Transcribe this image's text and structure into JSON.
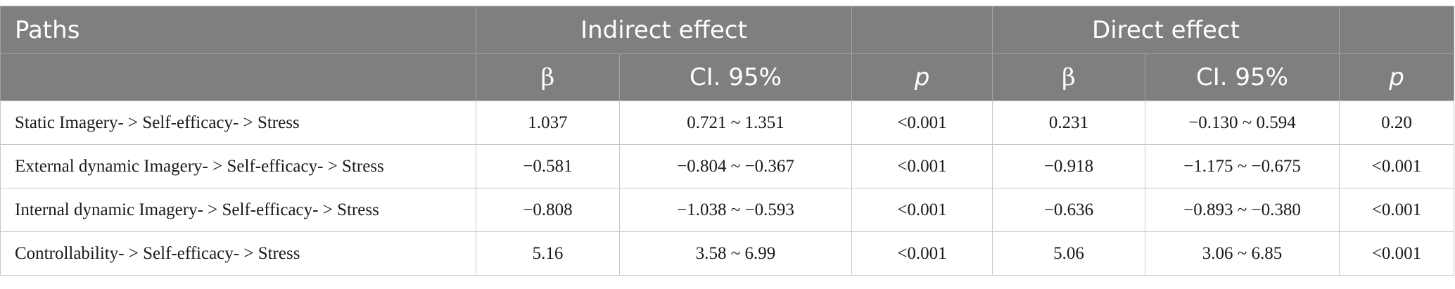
{
  "header": {
    "paths": "Paths",
    "indirect_effect": "Indirect effect",
    "direct_effect": "Direct effect",
    "beta": "β",
    "ci": "CI. 95%",
    "p": "p"
  },
  "rows": [
    {
      "path": "Static Imagery- > Self-efficacy- > Stress",
      "ind_beta": "1.037",
      "ind_ci": "0.721 ~ 1.351",
      "ind_p": "<0.001",
      "dir_beta": "0.231",
      "dir_ci": "−0.130 ~ 0.594",
      "dir_p": "0.20"
    },
    {
      "path": "External dynamic Imagery- > Self-efficacy- > Stress",
      "ind_beta": "−0.581",
      "ind_ci": "−0.804 ~ −0.367",
      "ind_p": "<0.001",
      "dir_beta": "−0.918",
      "dir_ci": "−1.175 ~ −0.675",
      "dir_p": "<0.001"
    },
    {
      "path": "Internal dynamic Imagery- > Self-efficacy- > Stress",
      "ind_beta": "−0.808",
      "ind_ci": "−1.038 ~ −0.593",
      "ind_p": "<0.001",
      "dir_beta": "−0.636",
      "dir_ci": "−0.893 ~ −0.380",
      "dir_p": "<0.001"
    },
    {
      "path": "Controllability- > Self-efficacy- > Stress",
      "ind_beta": "5.16",
      "ind_ci": "3.58 ~ 6.99",
      "ind_p": "<0.001",
      "dir_beta": "5.06",
      "dir_ci": "3.06 ~ 6.85",
      "dir_p": "<0.001"
    }
  ]
}
